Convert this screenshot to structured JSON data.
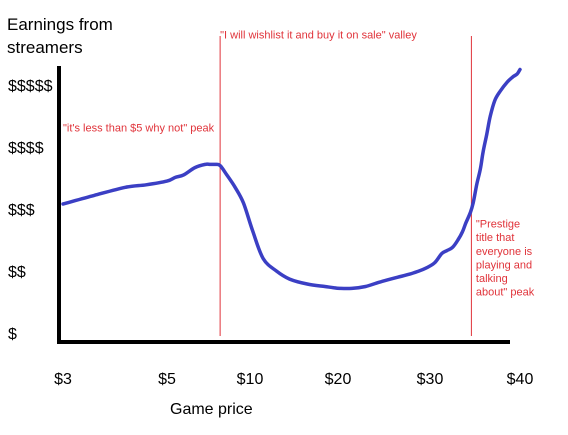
{
  "chart_data": {
    "type": "line",
    "title": "",
    "ylabel": [
      "Earnings from",
      "streamers"
    ],
    "xlabel": "Game price",
    "x_ticks": [
      {
        "label": "$3",
        "value": 3
      },
      {
        "label": "$5",
        "value": 5
      },
      {
        "label": "$10",
        "value": 10
      },
      {
        "label": "$20",
        "value": 20
      },
      {
        "label": "$30",
        "value": 30
      },
      {
        "label": "$40",
        "value": 40
      }
    ],
    "y_ticks": [
      {
        "label": "$",
        "value": 1
      },
      {
        "label": "$$",
        "value": 2
      },
      {
        "label": "$$$",
        "value": 3
      },
      {
        "label": "$$$$",
        "value": 4
      },
      {
        "label": "$$$$$",
        "value": 5
      }
    ],
    "ylim": [
      0.6,
      5.6
    ],
    "grid": false,
    "series": [
      {
        "color": "#3b3fc4",
        "x": [
          3,
          3.6,
          4.2,
          4.6,
          5.0,
          5.5,
          6.0,
          6.7,
          7.3,
          7.6,
          7.9,
          8.2,
          8.6,
          9.1,
          9.6,
          10.3,
          11.5,
          13,
          14.5,
          16.5,
          18.5,
          19.5,
          20.2,
          21.5,
          23,
          24.5,
          26.5,
          27.8,
          28.8,
          29.6,
          30.5,
          31.3,
          31.9,
          32.5,
          33.1,
          33.6,
          34.0,
          34.5,
          34.8,
          35.2,
          35.6,
          35.9,
          36.3,
          36.7,
          37.2,
          37.8,
          38.6,
          39.2,
          39.7,
          40
        ],
        "values": [
          3.08,
          3.22,
          3.35,
          3.39,
          3.45,
          3.51,
          3.55,
          3.67,
          3.72,
          3.72,
          3.72,
          3.7,
          3.55,
          3.35,
          3.1,
          2.65,
          2.2,
          2.0,
          1.87,
          1.79,
          1.75,
          1.73,
          1.72,
          1.72,
          1.75,
          1.82,
          1.9,
          1.95,
          2.0,
          2.05,
          2.13,
          2.28,
          2.33,
          2.38,
          2.5,
          2.63,
          2.78,
          2.95,
          3.1,
          3.4,
          3.65,
          3.92,
          4.2,
          4.5,
          4.75,
          4.9,
          5.05,
          5.13,
          5.18,
          5.25
        ]
      }
    ],
    "annotations": [
      {
        "text": "\"it's less than $5 why not\" peak",
        "x": 3,
        "y": 4.25
      },
      {
        "text": "\"I will wishlist it and buy it on sale\" valley",
        "x": 8.2,
        "y": 5.75
      },
      {
        "lines": [
          "\"Prestige",
          "title that",
          "everyone is",
          "playing and",
          "talking",
          "about\" peak"
        ],
        "x": 35.1,
        "y": 2.7
      }
    ],
    "vlines": [
      {
        "x": 8.2,
        "color": "#e0333a"
      },
      {
        "x": 34.6,
        "color": "#e0333a"
      }
    ]
  }
}
